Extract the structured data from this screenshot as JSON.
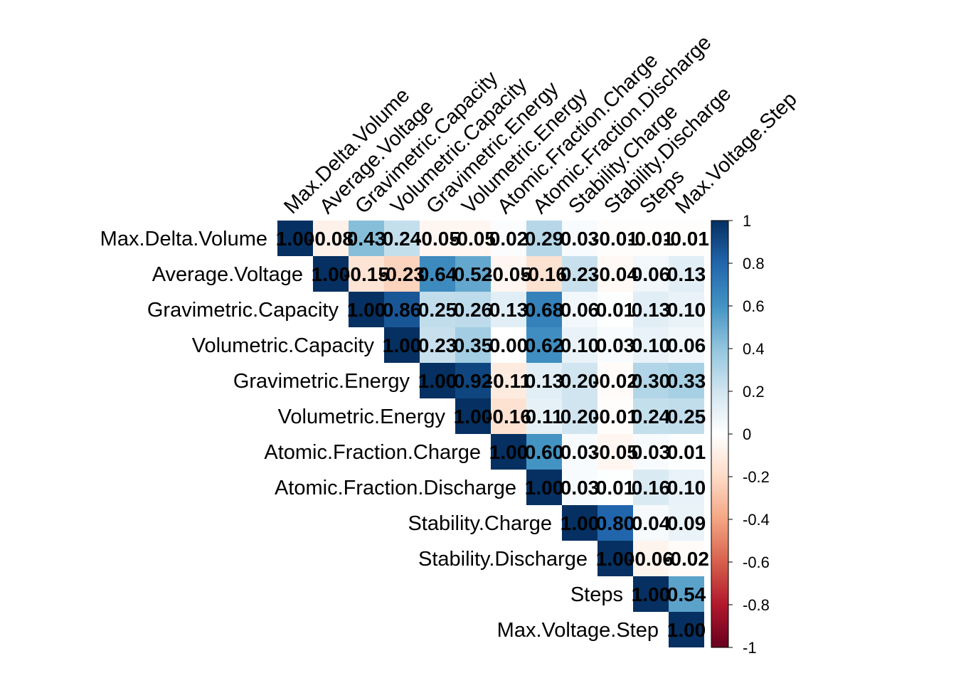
{
  "chart_data": {
    "type": "heatmap",
    "layout": "upper-triangle correlation matrix",
    "variables": [
      "Max.Delta.Volume",
      "Average.Voltage",
      "Gravimetric.Capacity",
      "Volumetric.Capacity",
      "Gravimetric.Energy",
      "Volumetric.Energy",
      "Atomic.Fraction.Charge",
      "Atomic.Fraction.Discharge",
      "Stability.Charge",
      "Stability.Discharge",
      "Steps",
      "Max.Voltage.Step"
    ],
    "values": [
      [
        1.0,
        -0.08,
        0.43,
        0.24,
        -0.05,
        -0.05,
        0.02,
        0.29,
        0.03,
        -0.01,
        -0.01,
        -0.01
      ],
      [
        null,
        1.0,
        -0.15,
        -0.23,
        0.64,
        0.52,
        -0.05,
        -0.16,
        0.23,
        -0.04,
        0.06,
        0.13
      ],
      [
        null,
        null,
        1.0,
        0.86,
        0.25,
        0.26,
        0.13,
        0.68,
        0.06,
        0.01,
        0.13,
        0.1
      ],
      [
        null,
        null,
        null,
        1.0,
        0.23,
        0.35,
        0.0,
        0.62,
        0.1,
        0.03,
        0.1,
        0.06
      ],
      [
        null,
        null,
        null,
        null,
        1.0,
        0.92,
        -0.11,
        0.13,
        0.2,
        -0.02,
        0.3,
        0.33
      ],
      [
        null,
        null,
        null,
        null,
        null,
        1.0,
        -0.16,
        0.11,
        0.2,
        -0.01,
        0.24,
        0.25
      ],
      [
        null,
        null,
        null,
        null,
        null,
        null,
        1.0,
        0.6,
        0.03,
        -0.05,
        0.03,
        0.01
      ],
      [
        null,
        null,
        null,
        null,
        null,
        null,
        null,
        1.0,
        0.03,
        0.01,
        0.16,
        0.1
      ],
      [
        null,
        null,
        null,
        null,
        null,
        null,
        null,
        null,
        1.0,
        0.8,
        0.04,
        0.09
      ],
      [
        null,
        null,
        null,
        null,
        null,
        null,
        null,
        null,
        null,
        1.0,
        -0.06,
        -0.02
      ],
      [
        null,
        null,
        null,
        null,
        null,
        null,
        null,
        null,
        null,
        null,
        1.0,
        0.54
      ],
      [
        null,
        null,
        null,
        null,
        null,
        null,
        null,
        null,
        null,
        null,
        null,
        1.0
      ]
    ],
    "color_scale": {
      "range": [
        -1,
        1
      ],
      "ticks": [
        "1",
        "0.8",
        "0.6",
        "0.4",
        "0.2",
        "0",
        "-0.2",
        "-0.4",
        "-0.6",
        "-0.8",
        "-1"
      ],
      "stops": [
        "#67001f",
        "#b2182b",
        "#d6604d",
        "#f4a582",
        "#fddbc7",
        "#ffffff",
        "#d1e5f0",
        "#92c5de",
        "#4393c3",
        "#2166ac",
        "#053061"
      ]
    }
  }
}
